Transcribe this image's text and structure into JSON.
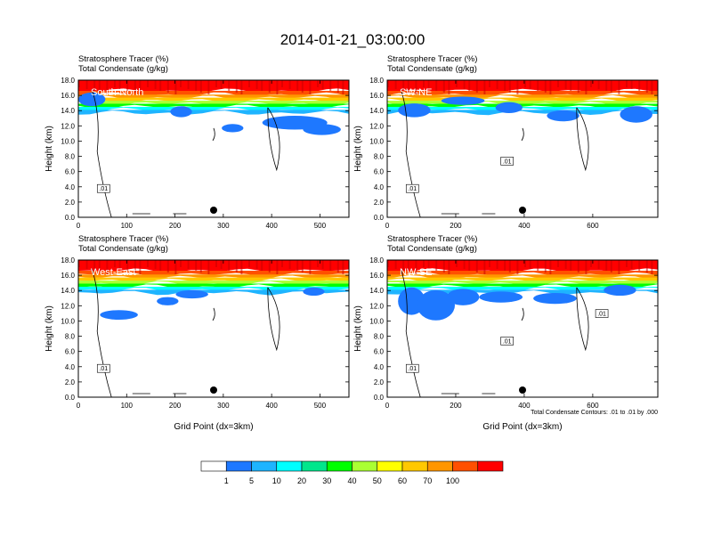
{
  "title": "2014-01-21_03:00:00",
  "colors": {
    "scale": [
      "#ffffff",
      "#1e78ff",
      "#1eb4ff",
      "#00ffff",
      "#00e68c",
      "#00ff00",
      "#aaff32",
      "#ffff00",
      "#ffc800",
      "#ff9600",
      "#ff5000",
      "#ff0000"
    ]
  },
  "chart_data": [
    {
      "type": "heatmap",
      "subtitle1": "Stratosphere Tracer   (%)",
      "subtitle2": "Total Condensate   (g/kg)",
      "label": "South-North",
      "xlabel": "",
      "ylabel": "Height (km)",
      "xlim": [
        0,
        560
      ],
      "xticks": [
        "0",
        "100",
        "200",
        "300",
        "400",
        "500"
      ],
      "ylim": [
        0,
        18
      ],
      "yticks": [
        "0.0",
        "2.0",
        "4.0",
        "6.0",
        "8.0",
        "10.0",
        "12.0",
        "14.0",
        "16.0",
        "18.0"
      ],
      "marker_x": 280,
      "contour_labels": [
        ".01"
      ],
      "footnote": ""
    },
    {
      "type": "heatmap",
      "subtitle1": "Stratosphere Tracer   (%)",
      "subtitle2": "Total Condensate   (g/kg)",
      "label": "SW-NE",
      "xlabel": "",
      "ylabel": "Height (km)",
      "xlim": [
        0,
        790
      ],
      "xticks": [
        "0",
        "200",
        "400",
        "600"
      ],
      "ylim": [
        0,
        18
      ],
      "yticks": [
        "0.0",
        "2.0",
        "4.0",
        "6.0",
        "8.0",
        "10.0",
        "12.0",
        "14.0",
        "16.0",
        "18.0"
      ],
      "marker_x": 395,
      "contour_labels": [
        ".01",
        ".01"
      ],
      "footnote": ""
    },
    {
      "type": "heatmap",
      "subtitle1": "Stratosphere Tracer   (%)",
      "subtitle2": "Total Condensate   (g/kg)",
      "label": "West-East",
      "xlabel": "Grid Point (dx=3km)",
      "ylabel": "Height (km)",
      "xlim": [
        0,
        560
      ],
      "xticks": [
        "0",
        "100",
        "200",
        "300",
        "400",
        "500"
      ],
      "ylim": [
        0,
        18
      ],
      "yticks": [
        "0.0",
        "2.0",
        "4.0",
        "6.0",
        "8.0",
        "10.0",
        "12.0",
        "14.0",
        "16.0",
        "18.0"
      ],
      "marker_x": 280,
      "contour_labels": [
        ".01"
      ],
      "footnote": ""
    },
    {
      "type": "heatmap",
      "subtitle1": "Stratosphere Tracer   (%)",
      "subtitle2": "Total Condensate   (g/kg)",
      "label": "NW-SE",
      "xlabel": "Grid Point (dx=3km)",
      "ylabel": "Height (km)",
      "xlim": [
        0,
        790
      ],
      "xticks": [
        "0",
        "200",
        "400",
        "600"
      ],
      "ylim": [
        0,
        18
      ],
      "yticks": [
        "0.0",
        "2.0",
        "4.0",
        "6.0",
        "8.0",
        "10.0",
        "12.0",
        "14.0",
        "16.0",
        "18.0"
      ],
      "marker_x": 395,
      "contour_labels": [
        ".01",
        ".01",
        ".01"
      ],
      "footnote": "Total Condensate Contours: .01 to .01 by .000"
    }
  ],
  "colorbar": {
    "labels": [
      "1",
      "5",
      "10",
      "20",
      "30",
      "40",
      "50",
      "60",
      "70",
      "100"
    ]
  }
}
